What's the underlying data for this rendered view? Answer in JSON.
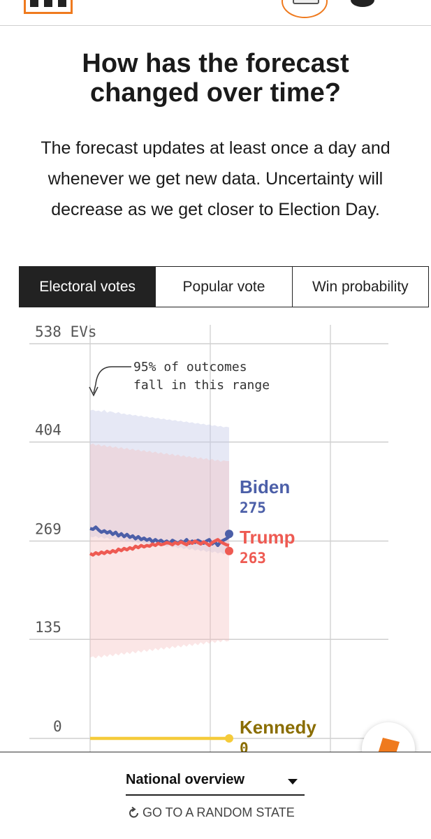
{
  "heading": "How has the forecast changed over time?",
  "description": "The forecast updates at least once a day and whenever we get new data. Uncertainty will decrease as we get closer to Election Day.",
  "tabs": [
    {
      "label": "Electoral votes",
      "active": true
    },
    {
      "label": "Popular vote",
      "active": false
    },
    {
      "label": "Win probability",
      "active": false
    }
  ],
  "chart_data": {
    "type": "line",
    "y_ticks": [
      {
        "value": 538,
        "label": "538 EVs"
      },
      {
        "value": 404,
        "label": "404"
      },
      {
        "value": 269,
        "label": "269"
      },
      {
        "value": 135,
        "label": "135"
      },
      {
        "value": 0,
        "label": "0"
      }
    ],
    "ylim": [
      0,
      538
    ],
    "x": [
      0,
      1,
      2,
      3,
      4,
      5,
      6,
      7,
      8,
      9,
      10,
      11,
      12,
      13,
      14,
      15,
      16,
      17,
      18,
      19,
      20,
      21,
      22,
      23,
      24,
      25,
      26,
      27,
      28,
      29,
      30,
      31,
      32,
      33,
      34,
      35,
      36,
      37,
      38,
      39,
      40,
      41,
      42,
      43,
      44,
      45,
      46,
      47,
      48,
      49
    ],
    "annotation": "95% of outcomes fall in this range",
    "series": [
      {
        "name": "Biden",
        "color": "#4c5fa8",
        "final_label": "275",
        "values": [
          286,
          285,
          288,
          284,
          281,
          283,
          280,
          282,
          278,
          281,
          276,
          279,
          275,
          278,
          274,
          276,
          272,
          275,
          271,
          273,
          270,
          272,
          268,
          271,
          268,
          270,
          267,
          269,
          266,
          270,
          268,
          266,
          269,
          267,
          271,
          266,
          269,
          267,
          270,
          268,
          266,
          269,
          271,
          265,
          268,
          263,
          268,
          270,
          272,
          275
        ],
        "band_upper": [
          447,
          448,
          446,
          447,
          445,
          448,
          444,
          446,
          445,
          443,
          445,
          442,
          443,
          441,
          442,
          440,
          441,
          439,
          440,
          438,
          439,
          437,
          438,
          436,
          437,
          435,
          436,
          434,
          435,
          433,
          434,
          432,
          433,
          431,
          432,
          430,
          431,
          429,
          430,
          428,
          429,
          427,
          428,
          426,
          427,
          425,
          426,
          424,
          425,
          424
        ],
        "band_lower": [
          275,
          274,
          276,
          273,
          275,
          272,
          274,
          271,
          273,
          270,
          272,
          269,
          271,
          268,
          270,
          267,
          269,
          266,
          268,
          265,
          267,
          264,
          266,
          263,
          265,
          262,
          264,
          261,
          263,
          260,
          262,
          259,
          261,
          258,
          260,
          257,
          259,
          256,
          258,
          255,
          257,
          254,
          256,
          253,
          255,
          252,
          254,
          251,
          253,
          252
        ]
      },
      {
        "name": "Trump",
        "color": "#ee5a52",
        "final_label": "263",
        "values": [
          252,
          250,
          253,
          251,
          254,
          252,
          255,
          253,
          256,
          254,
          258,
          256,
          259,
          257,
          260,
          258,
          262,
          260,
          263,
          261,
          263,
          262,
          265,
          263,
          266,
          264,
          265,
          267,
          266,
          264,
          267,
          265,
          268,
          266,
          264,
          268,
          266,
          269,
          267,
          265,
          268,
          266,
          263,
          267,
          269,
          271,
          268,
          266,
          264,
          263
        ],
        "band_upper": [
          400,
          402,
          399,
          401,
          398,
          400,
          397,
          399,
          396,
          398,
          395,
          397,
          394,
          396,
          393,
          395,
          392,
          394,
          391,
          393,
          390,
          392,
          389,
          391,
          388,
          390,
          387,
          389,
          386,
          388,
          385,
          387,
          384,
          386,
          383,
          385,
          382,
          384,
          381,
          383,
          380,
          382,
          379,
          381,
          378,
          380,
          377,
          379,
          378,
          378
        ],
        "band_lower": [
          110,
          112,
          109,
          113,
          110,
          114,
          111,
          115,
          112,
          116,
          113,
          117,
          114,
          118,
          115,
          119,
          116,
          120,
          117,
          121,
          118,
          122,
          119,
          123,
          120,
          124,
          121,
          125,
          122,
          126,
          123,
          127,
          124,
          128,
          125,
          129,
          126,
          130,
          127,
          131,
          128,
          132,
          129,
          133,
          130,
          134,
          131,
          135,
          132,
          133
        ]
      },
      {
        "name": "Kennedy",
        "color": "#f5cb3a",
        "label_color": "#8a6d00",
        "final_label": "0",
        "values": [
          0,
          0,
          0,
          0,
          0,
          0,
          0,
          0,
          0,
          0,
          0,
          0,
          0,
          0,
          0,
          0,
          0,
          0,
          0,
          0,
          0,
          0,
          0,
          0,
          0,
          0,
          0,
          0,
          0,
          0,
          0,
          0,
          0,
          0,
          0,
          0,
          0,
          0,
          0,
          0,
          0,
          0,
          0,
          0,
          0,
          0,
          0,
          0,
          0,
          0
        ]
      }
    ]
  },
  "footer": {
    "selector_label": "National overview",
    "random_state_label": "GO TO A RANDOM STATE"
  }
}
